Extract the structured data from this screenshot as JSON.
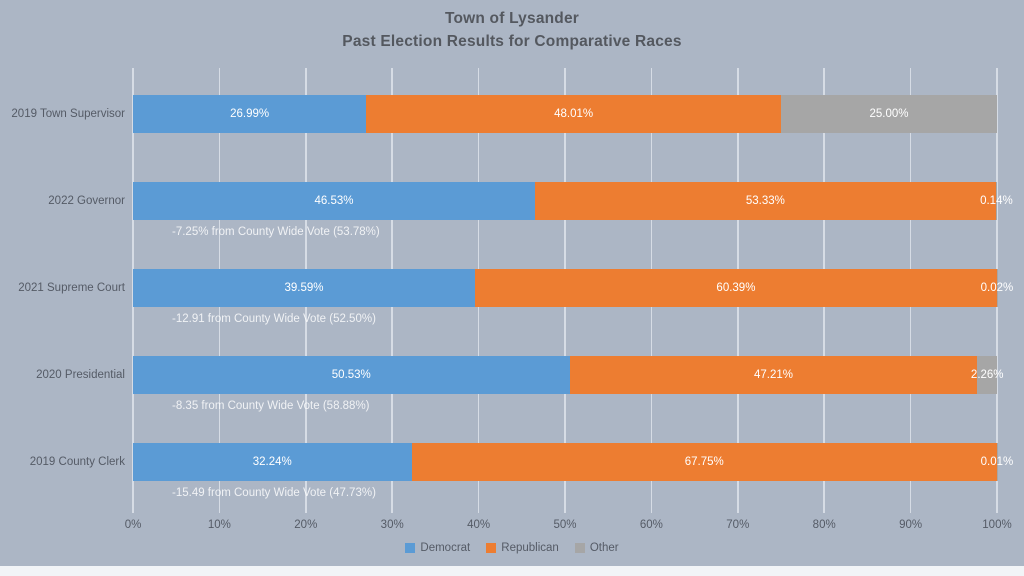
{
  "chart_data": {
    "type": "bar",
    "stacked": true,
    "orientation": "horizontal",
    "title_lines": [
      "Town of Lysander",
      "Past Election Results for Comparative Races"
    ],
    "categories": [
      "2019 Town Supervisor",
      "2022 Governor",
      "2021 Supreme Court",
      "2020 Presidential",
      "2019 County Clerk"
    ],
    "series": [
      {
        "name": "Democrat",
        "color": "#5b9bd5",
        "values": [
          26.99,
          46.53,
          39.59,
          50.53,
          32.24
        ]
      },
      {
        "name": "Republican",
        "color": "#ed7d31",
        "values": [
          48.01,
          53.33,
          60.39,
          47.21,
          67.75
        ]
      },
      {
        "name": "Other",
        "color": "#a6a6a6",
        "values": [
          25.0,
          0.14,
          0.02,
          2.26,
          0.01
        ]
      }
    ],
    "annotations": [
      "",
      "-7.25% from County Wide Vote (53.78%)",
      "-12.91 from County Wide Vote (52.50%)",
      "-8.35 from County Wide Vote (58.88%)",
      "-15.49 from County Wide Vote (47.73%)"
    ],
    "x_ticks": [
      "0%",
      "10%",
      "20%",
      "30%",
      "40%",
      "50%",
      "60%",
      "70%",
      "80%",
      "90%",
      "100%"
    ],
    "xlim": [
      0,
      100
    ],
    "grid": true,
    "legend": [
      "Democrat",
      "Republican",
      "Other"
    ],
    "legend_position": "bottom",
    "colors": {
      "background": "#acb6c5",
      "democrat": "#5b9bd5",
      "republican": "#ed7d31",
      "other": "#a6a6a6",
      "gridline": "#eef2f7",
      "title_text": "#54585f",
      "axis_text": "#555b66",
      "data_label_text": "#ffffff"
    }
  }
}
